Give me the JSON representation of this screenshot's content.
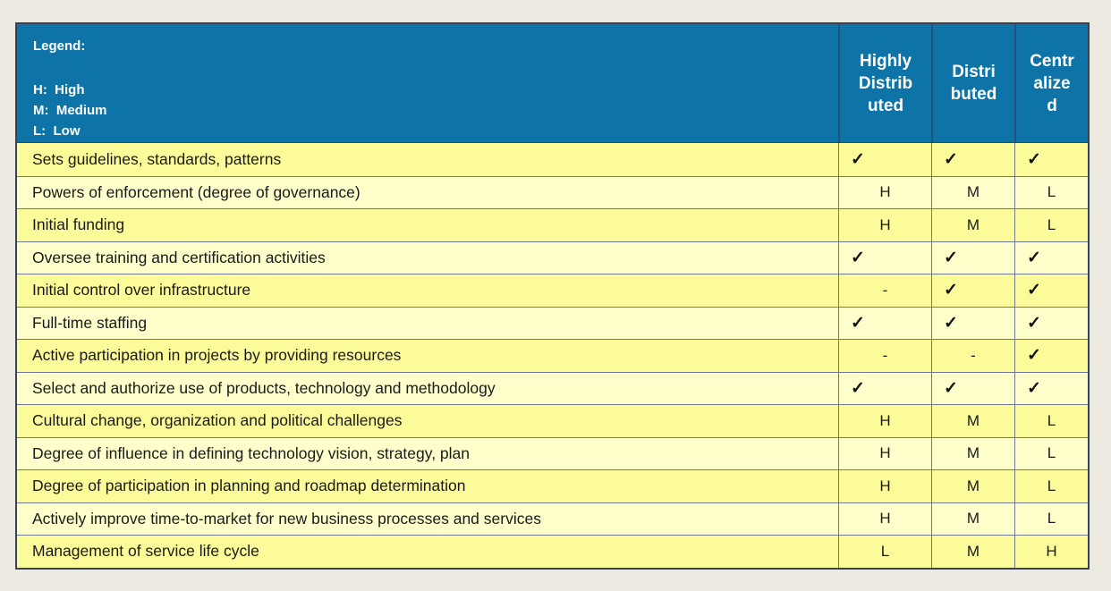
{
  "legend": {
    "title": "Legend:",
    "entries": [
      "H:  High",
      "M:  Medium",
      "L:  Low"
    ]
  },
  "columns": [
    {
      "label": "Highly Distributed",
      "lines": [
        "Highly",
        "Distrib",
        "uted"
      ]
    },
    {
      "label": "Distributed",
      "lines": [
        "Distri",
        "buted"
      ]
    },
    {
      "label": "Centralized",
      "lines": [
        "Centr",
        "alize",
        "d"
      ]
    }
  ],
  "symbols": {
    "check": "✓",
    "dash": "-"
  },
  "colors": {
    "header_blue": "#0E74A8",
    "row_dark_yellow": "#FCFB99",
    "row_light_yellow": "#FFFFCC",
    "page_background": "#EDEAE1"
  },
  "rows": [
    {
      "label": "Sets guidelines, standards, patterns",
      "values": [
        "✓",
        "✓",
        "✓"
      ]
    },
    {
      "label": "Powers of enforcement (degree of governance)",
      "values": [
        "H",
        "M",
        "L"
      ]
    },
    {
      "label": "Initial funding",
      "values": [
        "H",
        "M",
        "L"
      ]
    },
    {
      "label": "Oversee training and certification activities",
      "values": [
        "✓",
        "✓",
        "✓"
      ]
    },
    {
      "label": "Initial control over infrastructure",
      "values": [
        "-",
        "✓",
        "✓"
      ]
    },
    {
      "label": "Full-time staffing",
      "values": [
        "✓",
        "✓",
        "✓"
      ]
    },
    {
      "label": "Active participation in projects by providing resources",
      "values": [
        "-",
        "-",
        "✓"
      ]
    },
    {
      "label": "Select and authorize use of products, technology and methodology",
      "values": [
        "✓",
        "✓",
        "✓"
      ]
    },
    {
      "label": "Cultural change, organization and political challenges",
      "values": [
        "H",
        "M",
        "L"
      ]
    },
    {
      "label": "Degree of influence in defining technology vision, strategy, plan",
      "values": [
        "H",
        "M",
        "L"
      ]
    },
    {
      "label": "Degree of participation in planning and roadmap determination",
      "values": [
        "H",
        "M",
        "L"
      ]
    },
    {
      "label": "Actively improve time-to-market for new business processes and services",
      "values": [
        "H",
        "M",
        "L"
      ]
    },
    {
      "label": "Management of service life cycle",
      "values": [
        "L",
        "M",
        "H"
      ]
    }
  ]
}
